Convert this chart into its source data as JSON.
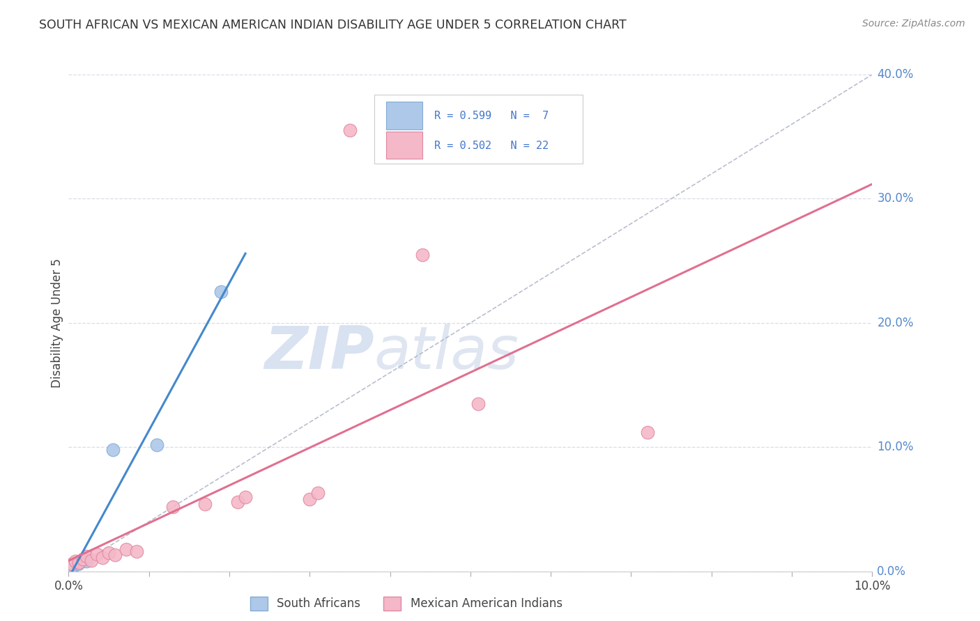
{
  "title": "SOUTH AFRICAN VS MEXICAN AMERICAN INDIAN DISABILITY AGE UNDER 5 CORRELATION CHART",
  "source": "Source: ZipAtlas.com",
  "ylabel": "Disability Age Under 5",
  "xlim": [
    0.0,
    10.0
  ],
  "ylim": [
    0.0,
    40.0
  ],
  "yticks": [
    0.0,
    10.0,
    20.0,
    30.0,
    40.0
  ],
  "xticks": [
    0.0,
    1.0,
    2.0,
    3.0,
    4.0,
    5.0,
    6.0,
    7.0,
    8.0,
    9.0,
    10.0
  ],
  "south_african_color": "#adc8e8",
  "south_african_edge": "#85aad4",
  "mexican_color": "#f4b8c8",
  "mexican_edge": "#e088a0",
  "south_african_points": [
    [
      0.05,
      0.4
    ],
    [
      0.12,
      0.6
    ],
    [
      0.18,
      0.9
    ],
    [
      0.22,
      0.8
    ],
    [
      0.55,
      9.8
    ],
    [
      1.1,
      10.2
    ],
    [
      1.9,
      22.5
    ]
  ],
  "mexican_american_points": [
    [
      0.04,
      0.6
    ],
    [
      0.08,
      0.8
    ],
    [
      0.13,
      0.7
    ],
    [
      0.18,
      1.0
    ],
    [
      0.22,
      1.2
    ],
    [
      0.28,
      0.9
    ],
    [
      0.35,
      1.4
    ],
    [
      0.42,
      1.1
    ],
    [
      0.5,
      1.5
    ],
    [
      0.58,
      1.3
    ],
    [
      0.72,
      1.8
    ],
    [
      0.85,
      1.6
    ],
    [
      1.3,
      5.2
    ],
    [
      1.7,
      5.4
    ],
    [
      2.1,
      5.6
    ],
    [
      2.2,
      6.0
    ],
    [
      3.0,
      5.8
    ],
    [
      3.1,
      6.3
    ],
    [
      3.5,
      35.5
    ],
    [
      4.4,
      25.5
    ],
    [
      5.1,
      13.5
    ],
    [
      7.2,
      11.2
    ]
  ],
  "legend_R_blue": "R = 0.599",
  "legend_N_blue": "N =  7",
  "legend_R_pink": "R = 0.502",
  "legend_N_pink": "N = 22",
  "blue_line_color": "#4488cc",
  "pink_line_color": "#e07090",
  "dashed_line_color": "#b0b8c8",
  "watermark_zip": "ZIP",
  "watermark_atlas": "atlas",
  "watermark_color_zip": "#c0d0e8",
  "watermark_color_atlas": "#b8c8e0",
  "background_color": "#ffffff",
  "grid_color": "#d8dde8",
  "title_color": "#333333",
  "source_color": "#888888",
  "ylabel_color": "#444444",
  "ytick_color": "#5588cc",
  "xtick_color": "#444444"
}
